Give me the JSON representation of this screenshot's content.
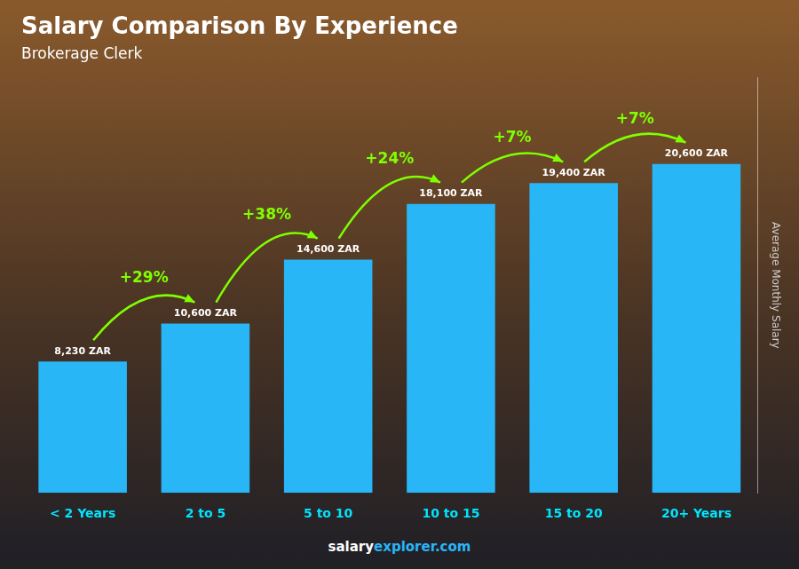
{
  "chart_data": {
    "type": "bar",
    "title": "Salary Comparison By Experience",
    "subtitle": "Brokerage Clerk",
    "ylabel": "Average Monthly Salary",
    "categories": [
      "< 2 Years",
      "2 to 5",
      "5 to 10",
      "10 to 15",
      "15 to 20",
      "20+ Years"
    ],
    "values": [
      8230,
      10600,
      14600,
      18100,
      19400,
      20600
    ],
    "value_labels": [
      "8,230 ZAR",
      "10,600 ZAR",
      "14,600 ZAR",
      "18,100 ZAR",
      "19,400 ZAR",
      "20,600 ZAR"
    ],
    "data_labels": true,
    "color": "#29b6f6",
    "ylim": [
      0,
      26000
    ],
    "yticks": [],
    "tick_labels": "x",
    "grid": false,
    "annotations": [
      {
        "from": "< 2 Years",
        "to": "2 to 5",
        "text": "+29%",
        "color": "#7fff00"
      },
      {
        "from": "2 to 5",
        "to": "5 to 10",
        "text": "+38%",
        "color": "#7fff00"
      },
      {
        "from": "5 to 10",
        "to": "10 to 15",
        "text": "+24%",
        "color": "#7fff00"
      },
      {
        "from": "10 to 15",
        "to": "15 to 20",
        "text": "+7%",
        "color": "#7fff00"
      },
      {
        "from": "15 to 20",
        "to": "20+ Years",
        "text": "+7%",
        "color": "#7fff00"
      }
    ],
    "footer": [
      {
        "text": "salary",
        "color": "#ffffff"
      },
      {
        "text": "explorer.com",
        "color": "#29b6f6"
      }
    ]
  }
}
